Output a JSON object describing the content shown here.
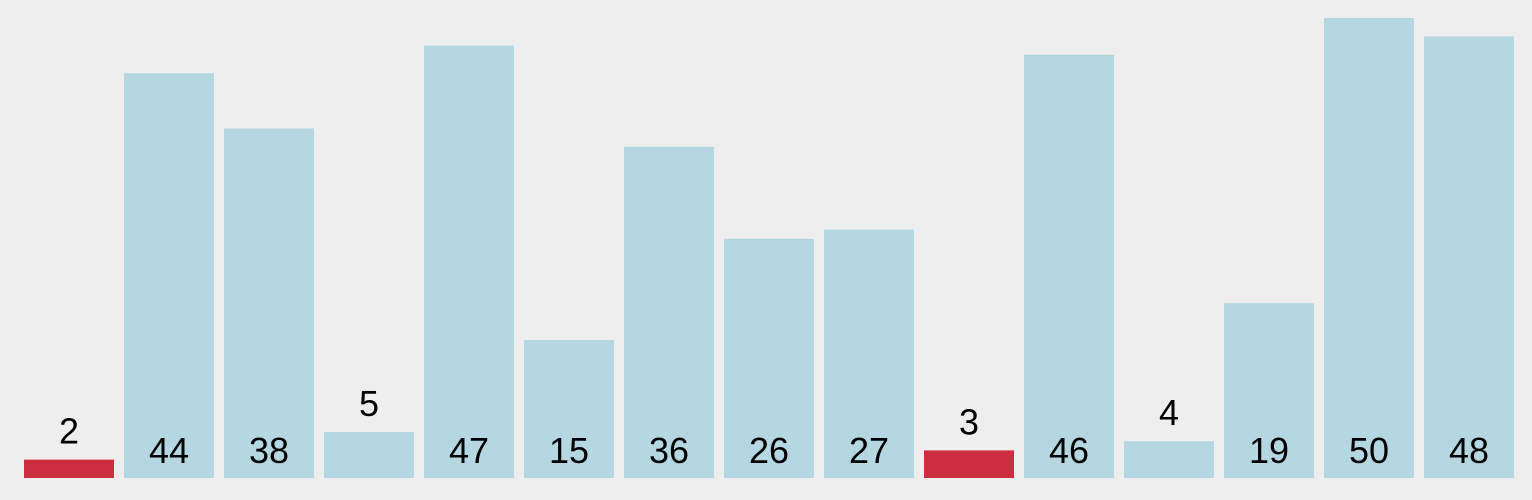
{
  "chart_data": {
    "type": "bar",
    "values": [
      2,
      44,
      38,
      5,
      47,
      15,
      36,
      26,
      27,
      3,
      46,
      4,
      19,
      50,
      48
    ],
    "highlighted": [
      0,
      9
    ],
    "ylim": [
      0,
      50
    ],
    "grid": false,
    "legend": "none",
    "colors": {
      "background": "#eeeeee",
      "bar": "#b5d7e2",
      "highlight": "#cc2e40",
      "label": "#000000"
    }
  }
}
